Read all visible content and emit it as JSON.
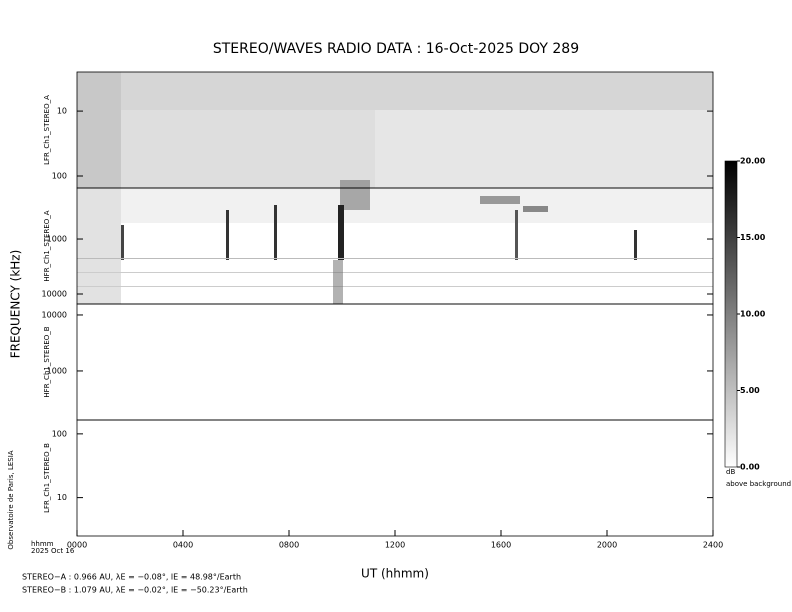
{
  "chart_data": {
    "type": "spectrogram",
    "title": "STEREO/WAVES  RADIO  DATA : 16-Oct-2025  DOY 289",
    "ylabel": "FREQUENCY (kHz)",
    "xlabel": "UT (hhmm)",
    "xunit": "hhmm",
    "date": "2025 Oct 16",
    "credit": "Observatoire de Paris, LESIA",
    "xlim": [
      0,
      2400
    ],
    "xticks": [
      {
        "value": 0,
        "label": "0000"
      },
      {
        "value": 400,
        "label": "0400"
      },
      {
        "value": 800,
        "label": "0800"
      },
      {
        "value": 1200,
        "label": "1200"
      },
      {
        "value": 1600,
        "label": "1600"
      },
      {
        "value": 2000,
        "label": "2000"
      },
      {
        "value": 2400,
        "label": "2400"
      }
    ],
    "log_y": true,
    "panels": [
      {
        "name": "LFR_Ch1_STEREO_A",
        "ylim": [
          153,
          2.5
        ],
        "yticks": [
          10,
          100
        ]
      },
      {
        "name": "HFR_Ch1_STEREO_A",
        "ylim": [
          15200,
          118
        ],
        "yticks": [
          1000,
          10000
        ]
      },
      {
        "name": "HFR_Ch1_STEREO_B",
        "ylim": [
          133,
          15700
        ],
        "yticks": [
          1000,
          10000
        ]
      },
      {
        "name": "LFR_Ch1_STEREO_B",
        "ylim": [
          2.5,
          165
        ],
        "yticks": [
          10,
          100
        ]
      }
    ],
    "colorbar": {
      "label": "dB",
      "sublabel": "above background",
      "ylim": [
        0,
        20
      ],
      "yticks": [
        {
          "value": 0,
          "label": "0.00"
        },
        {
          "value": 5,
          "label": "5.00"
        },
        {
          "value": 10,
          "label": "10.00"
        },
        {
          "value": 15,
          "label": "15.00"
        },
        {
          "value": 20,
          "label": "20.00"
        }
      ],
      "colors": [
        "#ffffff",
        "#000000"
      ]
    },
    "footer": [
      "STEREO−A : 0.966 AU, λE = −0.08°, lE = 48.98°/Earth",
      "STEREO−B : 1.079 AU, λE = −0.02°, lE = −50.23°/Earth"
    ]
  }
}
